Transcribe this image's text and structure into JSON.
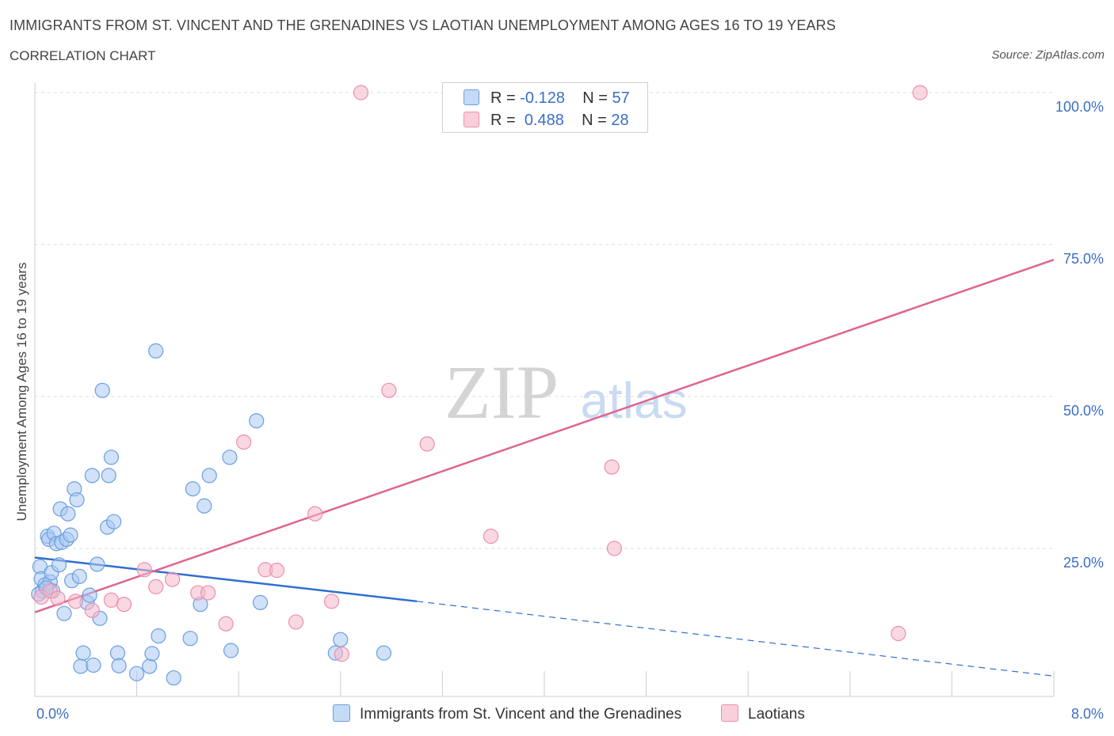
{
  "header": {
    "title": "IMMIGRANTS FROM ST. VINCENT AND THE GRENADINES VS LAOTIAN UNEMPLOYMENT AMONG AGES 16 TO 19 YEARS",
    "subtitle": "CORRELATION CHART",
    "source": "Source: ZipAtlas.com"
  },
  "legend": {
    "rows": [
      {
        "r_label": "R =",
        "r_value": "-0.128",
        "n_label": "N =",
        "n_value": "57"
      },
      {
        "r_label": "R =",
        "r_value": "0.488",
        "n_label": "N =",
        "n_value": "28"
      }
    ]
  },
  "watermark": {
    "zip": "ZIP",
    "atlas": "atlas"
  },
  "colors": {
    "blue_fill": "#a9c8f3",
    "blue_stroke": "#6b9fe0",
    "blue_line": "#2f6fd0",
    "pink_fill": "#f6b8cb",
    "pink_stroke": "#ec8eac",
    "pink_line": "#e0648f",
    "tick_label": "#3a6fc4",
    "grid": "#dddddd"
  },
  "chart_data": {
    "type": "scatter",
    "title": "IMMIGRANTS FROM ST. VINCENT AND THE GRENADINES VS LAOTIAN UNEMPLOYMENT AMONG AGES 16 TO 19 YEARS",
    "xlabel": "",
    "ylabel": "Unemployment Among Ages 16 to 19 years",
    "xlim": [
      0,
      8
    ],
    "ylim": [
      0,
      100
    ],
    "x_tick_labels": [
      "0.0%",
      "8.0%"
    ],
    "y_tick_labels": [
      "100.0%",
      "75.0%",
      "50.0%",
      "25.0%"
    ],
    "y_ticks": [
      100,
      75,
      50,
      25
    ],
    "grid": true,
    "legend_position": "top-center",
    "series": [
      {
        "name": "Immigrants from St. Vincent and the Grenadines",
        "color": "blue",
        "R": -0.128,
        "N": 57,
        "trend": {
          "x0": 0,
          "y0": 23.5,
          "x1": 3.0,
          "y1": 16.3,
          "dashed_to_x": 8.0,
          "dashed_to_y": 4.0
        },
        "points": [
          [
            0.04,
            22.0
          ],
          [
            0.05,
            20.0
          ],
          [
            0.06,
            18.0
          ],
          [
            0.08,
            19.0
          ],
          [
            0.1,
            27.0
          ],
          [
            0.11,
            26.5
          ],
          [
            0.12,
            19.5
          ],
          [
            0.13,
            21.0
          ],
          [
            0.14,
            18.0
          ],
          [
            0.15,
            27.5
          ],
          [
            0.17,
            25.8
          ],
          [
            0.19,
            22.3
          ],
          [
            0.2,
            31.5
          ],
          [
            0.21,
            26.0
          ],
          [
            0.23,
            14.3
          ],
          [
            0.25,
            26.5
          ],
          [
            0.26,
            30.7
          ],
          [
            0.28,
            27.2
          ],
          [
            0.29,
            19.7
          ],
          [
            0.31,
            34.8
          ],
          [
            0.33,
            33.0
          ],
          [
            0.35,
            20.4
          ],
          [
            0.36,
            5.6
          ],
          [
            0.38,
            7.8
          ],
          [
            0.41,
            16.1
          ],
          [
            0.43,
            17.3
          ],
          [
            0.45,
            37.0
          ],
          [
            0.46,
            5.8
          ],
          [
            0.49,
            22.4
          ],
          [
            0.51,
            13.5
          ],
          [
            0.53,
            51.0
          ],
          [
            0.57,
            28.5
          ],
          [
            0.58,
            37.0
          ],
          [
            0.6,
            40.0
          ],
          [
            0.62,
            29.4
          ],
          [
            0.65,
            7.8
          ],
          [
            0.66,
            5.7
          ],
          [
            0.8,
            4.4
          ],
          [
            0.9,
            5.6
          ],
          [
            0.92,
            7.7
          ],
          [
            0.95,
            57.5
          ],
          [
            0.97,
            10.6
          ],
          [
            1.09,
            3.7
          ],
          [
            1.22,
            10.2
          ],
          [
            1.24,
            34.8
          ],
          [
            1.3,
            15.8
          ],
          [
            1.33,
            32.0
          ],
          [
            1.37,
            37.0
          ],
          [
            1.54,
            8.2
          ],
          [
            1.53,
            40.0
          ],
          [
            1.74,
            46.0
          ],
          [
            1.77,
            16.1
          ],
          [
            2.4,
            10.0
          ],
          [
            2.36,
            7.8
          ],
          [
            2.74,
            7.8
          ],
          [
            0.03,
            17.5
          ],
          [
            0.09,
            18.5
          ]
        ]
      },
      {
        "name": "Laotians",
        "color": "pink",
        "R": 0.488,
        "N": 28,
        "trend": {
          "x0": 0,
          "y0": 14.5,
          "x1": 8.0,
          "y1": 72.5
        },
        "points": [
          [
            0.05,
            17.0
          ],
          [
            0.12,
            18.0
          ],
          [
            0.18,
            16.8
          ],
          [
            0.32,
            16.3
          ],
          [
            0.45,
            14.8
          ],
          [
            0.6,
            16.5
          ],
          [
            0.7,
            15.8
          ],
          [
            0.86,
            21.5
          ],
          [
            0.95,
            18.7
          ],
          [
            1.08,
            19.9
          ],
          [
            1.28,
            17.7
          ],
          [
            1.36,
            17.7
          ],
          [
            1.5,
            12.6
          ],
          [
            1.64,
            42.5
          ],
          [
            1.81,
            21.5
          ],
          [
            1.9,
            21.4
          ],
          [
            2.05,
            12.9
          ],
          [
            2.2,
            30.7
          ],
          [
            2.33,
            16.3
          ],
          [
            2.41,
            7.6
          ],
          [
            2.56,
            100.0
          ],
          [
            2.78,
            51.0
          ],
          [
            3.08,
            42.2
          ],
          [
            3.58,
            27.0
          ],
          [
            4.53,
            38.4
          ],
          [
            4.55,
            25.0
          ],
          [
            6.95,
            100.0
          ],
          [
            6.78,
            11.0
          ]
        ]
      }
    ]
  }
}
